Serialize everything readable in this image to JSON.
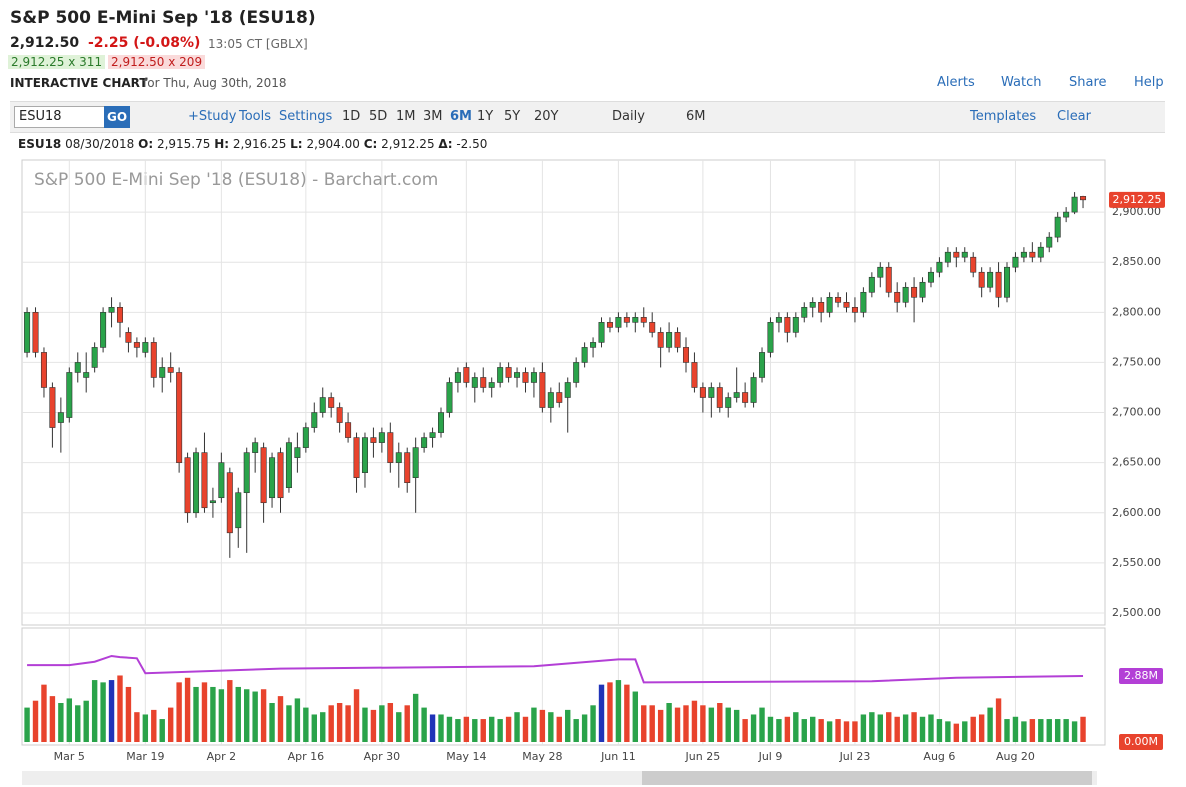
{
  "header": {
    "title": "S&P 500 E-Mini Sep '18 (ESU18)",
    "last": "2,912.50",
    "change": "-2.25 (-0.08%)",
    "time": "13:05 CT [GBLX]",
    "bid": "2,912.25 x 311",
    "ask": "2,912.50 x 209",
    "chart_label": "INTERACTIVE CHART",
    "chart_date": "for Thu, Aug 30th, 2018",
    "links": [
      "Alerts",
      "Watch",
      "Share",
      "Help"
    ]
  },
  "toolbar": {
    "symbol": "ESU18",
    "go": "GO",
    "tools": [
      "+Study",
      "Tools",
      "Settings"
    ],
    "periods": [
      "1D",
      "5D",
      "1M",
      "3M",
      "6M",
      "1Y",
      "5Y",
      "20Y"
    ],
    "active_period": "6M",
    "interval": "Daily",
    "range": "6M",
    "templates": "Templates",
    "clear": "Clear"
  },
  "ohlc_line": {
    "symbol": "ESU18",
    "date": "08/30/2018",
    "parts": [
      [
        "O:",
        "2,915.75"
      ],
      [
        "H:",
        "2,916.25"
      ],
      [
        "L:",
        "2,904.00"
      ],
      [
        "C:",
        "2,912.25"
      ],
      [
        "Δ:",
        "-2.50"
      ]
    ]
  },
  "chart_data": {
    "type": "candlestick",
    "title": "S&P 500 E-Mini Sep '18 (ESU18) - Barchart.com",
    "up_color": "#2aa34a",
    "down_color": "#e8432d",
    "grid": true,
    "candles": [
      [
        2760,
        2805,
        2755,
        2800
      ],
      [
        2800,
        2805,
        2755,
        2760
      ],
      [
        2760,
        2765,
        2715,
        2725
      ],
      [
        2725,
        2730,
        2665,
        2685
      ],
      [
        2690,
        2715,
        2660,
        2700
      ],
      [
        2695,
        2745,
        2690,
        2740
      ],
      [
        2740,
        2760,
        2730,
        2750
      ],
      [
        2735,
        2760,
        2720,
        2740
      ],
      [
        2745,
        2770,
        2740,
        2765
      ],
      [
        2765,
        2805,
        2760,
        2800
      ],
      [
        2800,
        2815,
        2785,
        2805
      ],
      [
        2805,
        2810,
        2775,
        2790
      ],
      [
        2780,
        2785,
        2760,
        2770
      ],
      [
        2770,
        2775,
        2755,
        2765
      ],
      [
        2760,
        2775,
        2755,
        2770
      ],
      [
        2770,
        2775,
        2725,
        2735
      ],
      [
        2735,
        2755,
        2720,
        2745
      ],
      [
        2745,
        2760,
        2730,
        2740
      ],
      [
        2740,
        2745,
        2640,
        2650
      ],
      [
        2655,
        2660,
        2590,
        2600
      ],
      [
        2600,
        2665,
        2595,
        2660
      ],
      [
        2660,
        2680,
        2600,
        2605
      ],
      [
        2610,
        2625,
        2595,
        2612
      ],
      [
        2615,
        2660,
        2610,
        2650
      ],
      [
        2640,
        2645,
        2555,
        2580
      ],
      [
        2585,
        2625,
        2565,
        2620
      ],
      [
        2620,
        2665,
        2560,
        2660
      ],
      [
        2660,
        2675,
        2640,
        2670
      ],
      [
        2665,
        2670,
        2590,
        2610
      ],
      [
        2615,
        2660,
        2605,
        2655
      ],
      [
        2660,
        2665,
        2600,
        2615
      ],
      [
        2625,
        2675,
        2620,
        2670
      ],
      [
        2655,
        2680,
        2640,
        2665
      ],
      [
        2665,
        2690,
        2660,
        2685
      ],
      [
        2685,
        2710,
        2680,
        2700
      ],
      [
        2700,
        2725,
        2695,
        2715
      ],
      [
        2715,
        2720,
        2695,
        2705
      ],
      [
        2705,
        2710,
        2680,
        2690
      ],
      [
        2690,
        2700,
        2670,
        2675
      ],
      [
        2675,
        2680,
        2620,
        2635
      ],
      [
        2640,
        2680,
        2625,
        2675
      ],
      [
        2675,
        2685,
        2655,
        2670
      ],
      [
        2670,
        2685,
        2660,
        2680
      ],
      [
        2680,
        2690,
        2640,
        2650
      ],
      [
        2650,
        2670,
        2625,
        2660
      ],
      [
        2660,
        2665,
        2620,
        2630
      ],
      [
        2635,
        2675,
        2600,
        2665
      ],
      [
        2665,
        2680,
        2660,
        2675
      ],
      [
        2675,
        2685,
        2665,
        2680
      ],
      [
        2680,
        2705,
        2675,
        2700
      ],
      [
        2700,
        2735,
        2695,
        2730
      ],
      [
        2730,
        2745,
        2720,
        2740
      ],
      [
        2745,
        2750,
        2725,
        2730
      ],
      [
        2725,
        2740,
        2710,
        2735
      ],
      [
        2735,
        2745,
        2720,
        2725
      ],
      [
        2725,
        2735,
        2715,
        2730
      ],
      [
        2730,
        2750,
        2725,
        2745
      ],
      [
        2745,
        2750,
        2730,
        2735
      ],
      [
        2735,
        2745,
        2725,
        2740
      ],
      [
        2740,
        2745,
        2720,
        2730
      ],
      [
        2730,
        2745,
        2715,
        2740
      ],
      [
        2740,
        2750,
        2700,
        2705
      ],
      [
        2705,
        2725,
        2690,
        2720
      ],
      [
        2720,
        2730,
        2705,
        2710
      ],
      [
        2715,
        2735,
        2680,
        2730
      ],
      [
        2730,
        2755,
        2725,
        2750
      ],
      [
        2750,
        2770,
        2745,
        2765
      ],
      [
        2765,
        2775,
        2755,
        2770
      ],
      [
        2770,
        2795,
        2765,
        2790
      ],
      [
        2790,
        2795,
        2780,
        2785
      ],
      [
        2785,
        2800,
        2780,
        2795
      ],
      [
        2795,
        2800,
        2785,
        2790
      ],
      [
        2790,
        2800,
        2780,
        2795
      ],
      [
        2795,
        2805,
        2785,
        2790
      ],
      [
        2790,
        2800,
        2775,
        2780
      ],
      [
        2780,
        2785,
        2745,
        2765
      ],
      [
        2765,
        2790,
        2760,
        2780
      ],
      [
        2780,
        2785,
        2760,
        2765
      ],
      [
        2765,
        2775,
        2740,
        2750
      ],
      [
        2750,
        2760,
        2720,
        2725
      ],
      [
        2725,
        2730,
        2700,
        2715
      ],
      [
        2715,
        2730,
        2695,
        2725
      ],
      [
        2725,
        2730,
        2700,
        2705
      ],
      [
        2705,
        2720,
        2695,
        2715
      ],
      [
        2715,
        2745,
        2710,
        2720
      ],
      [
        2720,
        2730,
        2705,
        2710
      ],
      [
        2710,
        2740,
        2705,
        2735
      ],
      [
        2735,
        2765,
        2730,
        2760
      ],
      [
        2760,
        2795,
        2755,
        2790
      ],
      [
        2790,
        2800,
        2780,
        2795
      ],
      [
        2795,
        2800,
        2770,
        2780
      ],
      [
        2780,
        2800,
        2775,
        2795
      ],
      [
        2795,
        2810,
        2790,
        2805
      ],
      [
        2805,
        2815,
        2795,
        2810
      ],
      [
        2810,
        2815,
        2790,
        2800
      ],
      [
        2800,
        2820,
        2795,
        2815
      ],
      [
        2815,
        2820,
        2805,
        2810
      ],
      [
        2810,
        2820,
        2800,
        2805
      ],
      [
        2805,
        2815,
        2790,
        2800
      ],
      [
        2800,
        2825,
        2795,
        2820
      ],
      [
        2820,
        2840,
        2815,
        2835
      ],
      [
        2835,
        2850,
        2825,
        2845
      ],
      [
        2845,
        2850,
        2815,
        2820
      ],
      [
        2820,
        2830,
        2800,
        2810
      ],
      [
        2810,
        2830,
        2805,
        2825
      ],
      [
        2825,
        2835,
        2790,
        2815
      ],
      [
        2815,
        2835,
        2810,
        2830
      ],
      [
        2830,
        2845,
        2825,
        2840
      ],
      [
        2840,
        2855,
        2835,
        2850
      ],
      [
        2850,
        2865,
        2845,
        2860
      ],
      [
        2860,
        2865,
        2845,
        2855
      ],
      [
        2855,
        2865,
        2850,
        2860
      ],
      [
        2855,
        2860,
        2835,
        2840
      ],
      [
        2840,
        2845,
        2815,
        2825
      ],
      [
        2825,
        2845,
        2820,
        2840
      ],
      [
        2840,
        2850,
        2805,
        2815
      ],
      [
        2815,
        2850,
        2810,
        2845
      ],
      [
        2845,
        2860,
        2840,
        2855
      ],
      [
        2855,
        2865,
        2850,
        2860
      ],
      [
        2860,
        2870,
        2850,
        2855
      ],
      [
        2855,
        2870,
        2850,
        2865
      ],
      [
        2865,
        2880,
        2860,
        2875
      ],
      [
        2875,
        2900,
        2870,
        2895
      ],
      [
        2895,
        2905,
        2890,
        2900
      ],
      [
        2900,
        2920,
        2898,
        2915
      ],
      [
        2915.75,
        2916.25,
        2904,
        2912.25
      ]
    ],
    "xlim": [
      -0.6,
      127.6
    ],
    "xticks": [
      {
        "value": 5,
        "label": "Mar 5"
      },
      {
        "value": 14,
        "label": "Mar 19"
      },
      {
        "value": 23,
        "label": "Apr 2"
      },
      {
        "value": 33,
        "label": "Apr 16"
      },
      {
        "value": 42,
        "label": "Apr 30"
      },
      {
        "value": 52,
        "label": "May 14"
      },
      {
        "value": 61,
        "label": "May 28"
      },
      {
        "value": 70,
        "label": "Jun 11"
      },
      {
        "value": 80,
        "label": "Jun 25"
      },
      {
        "value": 88,
        "label": "Jul 9"
      },
      {
        "value": 98,
        "label": "Jul 23"
      },
      {
        "value": 108,
        "label": "Aug 6"
      },
      {
        "value": 117,
        "label": "Aug 20"
      }
    ],
    "ylim": [
      2488,
      2952
    ],
    "yticks": [
      {
        "value": 2500,
        "label": "2,500.00"
      },
      {
        "value": 2550,
        "label": "2,550.00"
      },
      {
        "value": 2600,
        "label": "2,600.00"
      },
      {
        "value": 2650,
        "label": "2,650.00"
      },
      {
        "value": 2700,
        "label": "2,700.00"
      },
      {
        "value": 2750,
        "label": "2,750.00"
      },
      {
        "value": 2800,
        "label": "2,800.00"
      },
      {
        "value": 2850,
        "label": "2,850.00"
      },
      {
        "value": 2900,
        "label": "2,900.00"
      }
    ],
    "last_price": 2912.25,
    "last_price_label": "2,912.25",
    "last_price_color": "#e8432d",
    "volume": {
      "ylim": [
        0,
        4.97
      ],
      "yticks": [
        {
          "value": 2.88,
          "label": "2.88M"
        },
        {
          "value": 0,
          "label": "0.00M"
        }
      ],
      "highlight_color": "#2034b8",
      "highlight": [
        10,
        48,
        68
      ],
      "values": [
        1.5,
        1.8,
        2.5,
        2.0,
        1.7,
        1.9,
        1.6,
        1.8,
        2.7,
        2.6,
        2.7,
        2.9,
        2.4,
        1.3,
        1.2,
        1.4,
        1.0,
        1.5,
        2.6,
        2.8,
        2.4,
        2.6,
        2.4,
        2.3,
        2.7,
        2.4,
        2.3,
        2.2,
        2.3,
        1.7,
        2.0,
        1.6,
        1.9,
        1.5,
        1.2,
        1.3,
        1.6,
        1.7,
        1.6,
        2.3,
        1.5,
        1.4,
        1.6,
        1.7,
        1.3,
        1.6,
        2.1,
        1.5,
        1.2,
        1.2,
        1.1,
        1.0,
        1.1,
        1.0,
        1.0,
        1.1,
        1.0,
        1.1,
        1.3,
        1.1,
        1.5,
        1.4,
        1.3,
        1.1,
        1.4,
        1.0,
        1.2,
        1.6,
        2.5,
        2.6,
        2.7,
        2.5,
        2.2,
        1.6,
        1.6,
        1.4,
        1.7,
        1.5,
        1.6,
        1.8,
        1.6,
        1.5,
        1.7,
        1.5,
        1.4,
        1.0,
        1.2,
        1.5,
        1.1,
        1.0,
        1.1,
        1.3,
        1.0,
        1.1,
        1.0,
        0.9,
        1.0,
        0.9,
        0.9,
        1.2,
        1.3,
        1.2,
        1.3,
        1.1,
        1.2,
        1.3,
        1.1,
        1.2,
        1.0,
        0.9,
        0.8,
        0.9,
        1.1,
        1.2,
        1.5,
        1.9,
        1.0,
        1.1,
        0.9,
        1.0,
        1.0,
        1.0,
        1.0,
        1.0,
        0.9,
        1.1
      ],
      "average": {
        "color": "#b33fd6",
        "x": [
          0,
          5,
          8,
          10,
          11,
          13,
          14,
          30,
          60,
          70,
          72,
          73,
          100,
          110,
          125
        ],
        "values": [
          3.35,
          3.35,
          3.5,
          3.75,
          3.7,
          3.65,
          3.0,
          3.2,
          3.3,
          3.6,
          3.6,
          2.6,
          2.65,
          2.8,
          2.88
        ]
      }
    }
  }
}
